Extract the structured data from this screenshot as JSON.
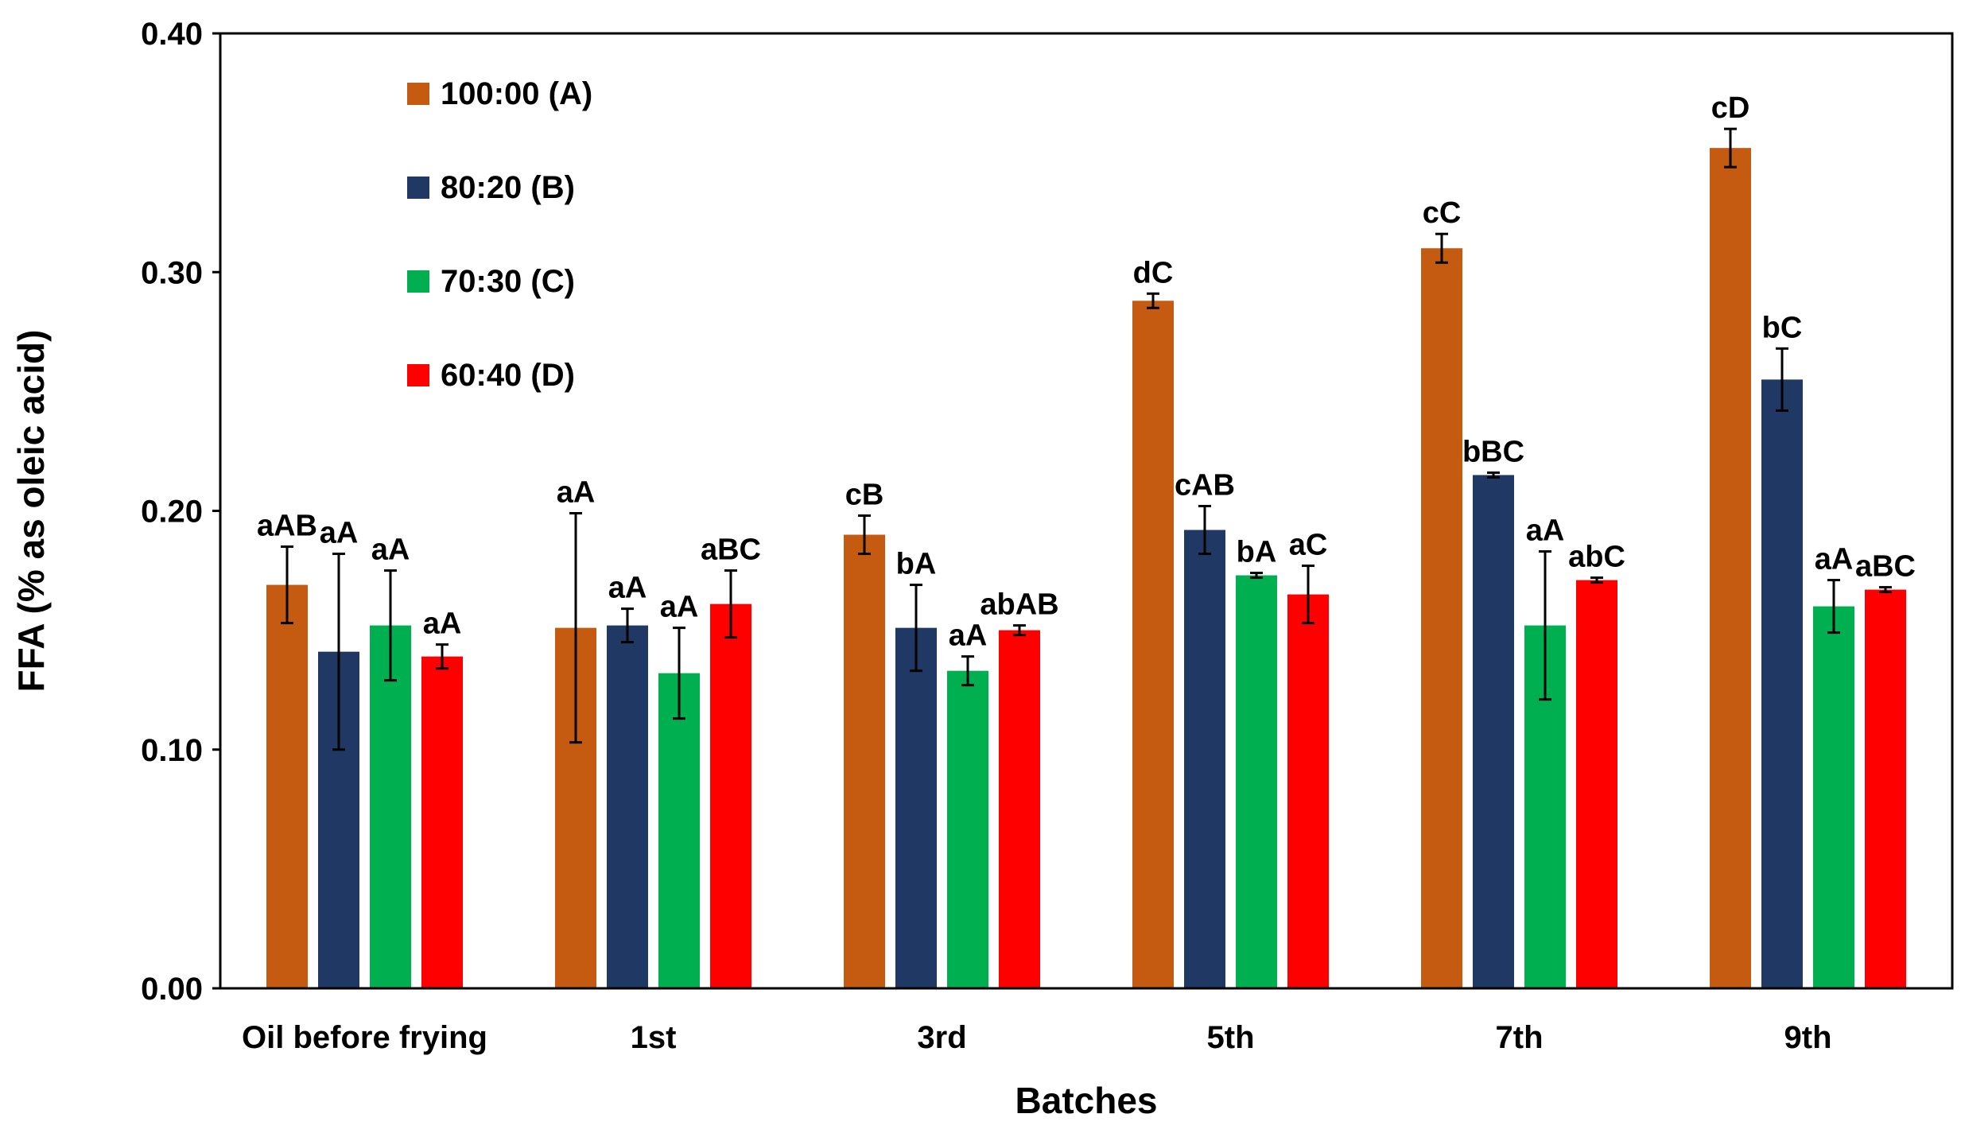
{
  "chart_data": {
    "type": "bar",
    "title": "",
    "xlabel": "Batches",
    "ylabel": "FFA (% as oleic acid)",
    "ylim": [
      0,
      0.4
    ],
    "yticks": [
      "0.00",
      "0.10",
      "0.20",
      "0.30",
      "0.40"
    ],
    "grid": false,
    "legend_position": "top-left",
    "categories": [
      "Oil before frying",
      "1st",
      "3rd",
      "5th",
      "7th",
      "9th"
    ],
    "series": [
      {
        "name": "100:00 (A)",
        "color": "#C55A11",
        "values": [
          0.169,
          0.151,
          0.19,
          0.288,
          0.31,
          0.352
        ],
        "errors": [
          0.016,
          0.048,
          0.008,
          0.003,
          0.006,
          0.008
        ],
        "labels": [
          "aAB",
          "aA",
          "cB",
          "dC",
          "cC",
          "cD"
        ]
      },
      {
        "name": "80:20 (B)",
        "color": "#203864",
        "values": [
          0.141,
          0.152,
          0.151,
          0.192,
          0.215,
          0.255
        ],
        "errors": [
          0.041,
          0.007,
          0.018,
          0.01,
          0.001,
          0.013
        ],
        "labels": [
          "aA",
          "aA",
          "bA",
          "cAB",
          "bBC",
          "bC"
        ]
      },
      {
        "name": "70:30 (C)",
        "color": "#00B050",
        "values": [
          0.152,
          0.132,
          0.133,
          0.173,
          0.152,
          0.16
        ],
        "errors": [
          0.023,
          0.019,
          0.006,
          0.001,
          0.031,
          0.011
        ],
        "labels": [
          "aA",
          "aA",
          "aA",
          "bA",
          "aA",
          "aA"
        ]
      },
      {
        "name": "60:40 (D)",
        "color": "#FF0000",
        "values": [
          0.139,
          0.161,
          0.15,
          0.165,
          0.171,
          0.167
        ],
        "errors": [
          0.005,
          0.014,
          0.002,
          0.012,
          0.001,
          0.001
        ],
        "labels": [
          "aA",
          "aBC",
          "abAB",
          "aC",
          "abC",
          "aBC"
        ]
      }
    ]
  }
}
